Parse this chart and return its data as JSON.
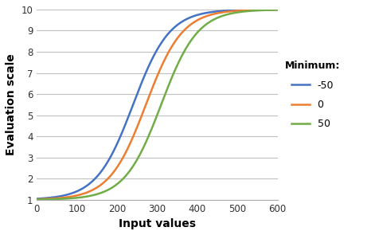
{
  "title": "",
  "xlabel": "Input values",
  "ylabel": "Evaluation scale",
  "xlim": [
    0,
    600
  ],
  "ylim": [
    1,
    10
  ],
  "xticks": [
    0,
    100,
    200,
    300,
    400,
    500,
    600
  ],
  "yticks": [
    1,
    2,
    3,
    4,
    5,
    6,
    7,
    8,
    9,
    10
  ],
  "legend_title": "Minimum:",
  "series": [
    {
      "label": "-50",
      "color": "#4472C4",
      "minimum": -50,
      "x_mid": 240
    },
    {
      "label": "0",
      "color": "#ED7D31",
      "minimum": 0,
      "x_mid": 272
    },
    {
      "label": "50",
      "color": "#70AD47",
      "minimum": 50,
      "x_mid": 310
    }
  ],
  "max_val": 10,
  "min_val": 1,
  "k": 0.022,
  "background_color": "#ffffff",
  "grid_color": "#c0c0c0"
}
